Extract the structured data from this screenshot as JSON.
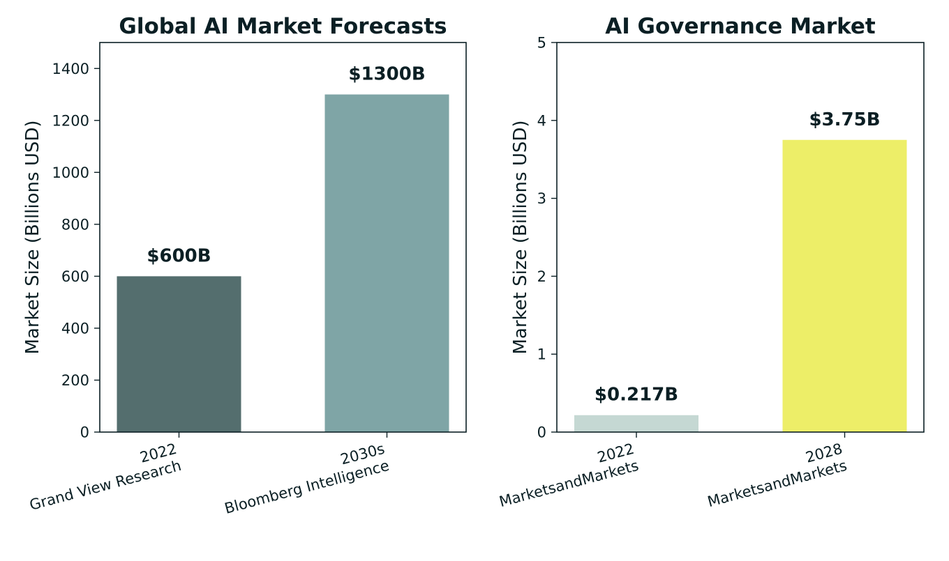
{
  "chart_data": [
    {
      "type": "bar",
      "title": "Global AI Market Forecasts",
      "ylabel": "Market Size (Billions USD)",
      "xlabel": "",
      "ylim": [
        0,
        1500
      ],
      "yticks": [
        0,
        200,
        400,
        600,
        800,
        1000,
        1200,
        1400
      ],
      "categories": [
        [
          "2022",
          "Grand View Research"
        ],
        [
          "2030s",
          "Bloomberg Intelligence"
        ]
      ],
      "values": [
        600,
        1300
      ],
      "data_labels": [
        "$600B",
        "$1300B"
      ],
      "colors": [
        "#546e6e",
        "#7fa5a6"
      ],
      "grid": false
    },
    {
      "type": "bar",
      "title": "AI Governance Market",
      "ylabel": "Market Size (Billions USD)",
      "xlabel": "",
      "ylim": [
        0,
        5
      ],
      "yticks": [
        0,
        1,
        2,
        3,
        4,
        5
      ],
      "categories": [
        [
          "2022",
          "MarketsandMarkets"
        ],
        [
          "2028",
          "MarketsandMarkets"
        ]
      ],
      "values": [
        0.217,
        3.75
      ],
      "data_labels": [
        "$0.217B",
        "$3.75B"
      ],
      "colors": [
        "#c5d8d3",
        "#edee68"
      ],
      "grid": false
    }
  ]
}
